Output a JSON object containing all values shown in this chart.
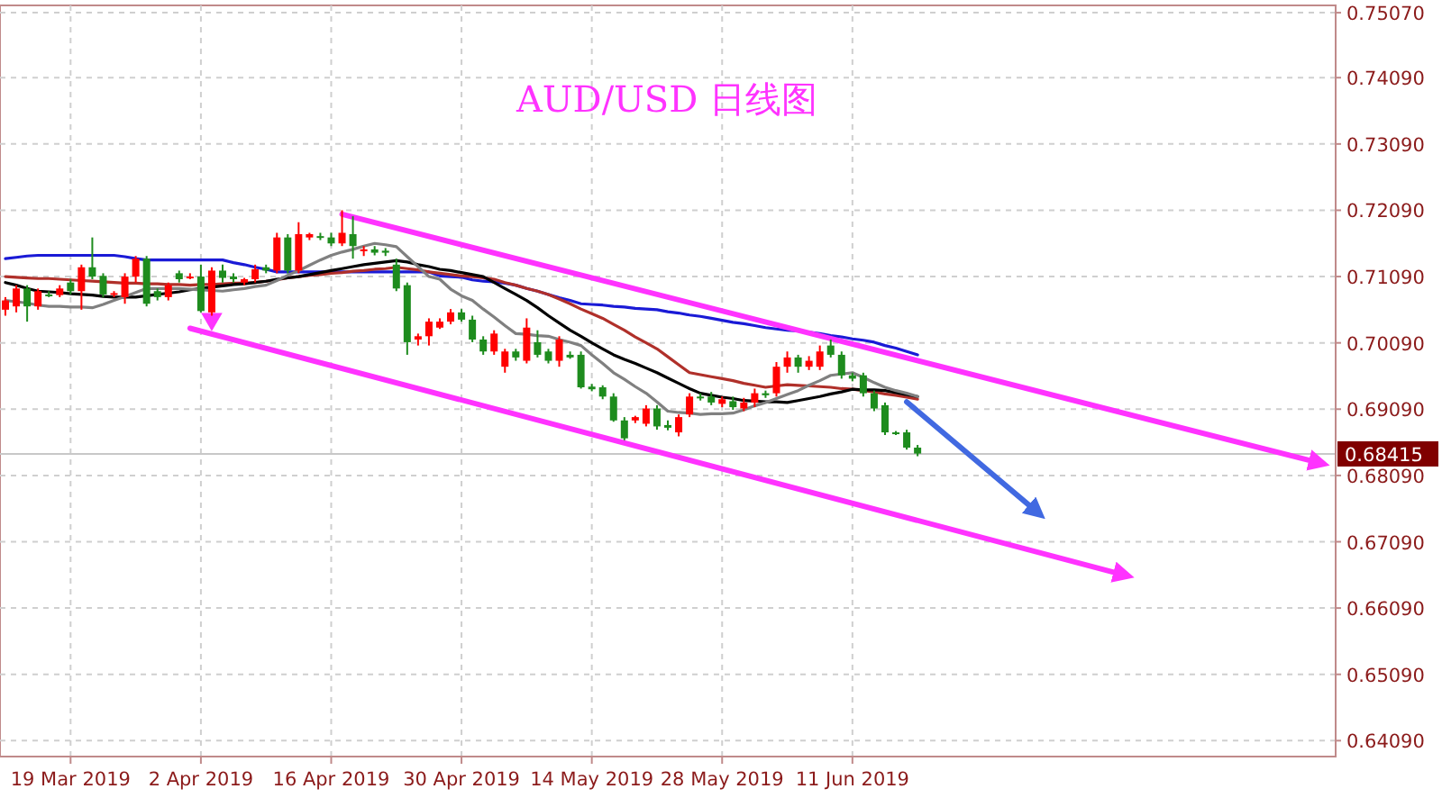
{
  "chart_data": {
    "type": "candlestick",
    "title": "AUD/USD 日线图",
    "categories": [
      null,
      null,
      null,
      null,
      null,
      null,
      "19 Mar 2019",
      null,
      null,
      null,
      null,
      null,
      null,
      null,
      null,
      null,
      null,
      null,
      "2 Apr 2019",
      null,
      null,
      null,
      null,
      null,
      null,
      null,
      null,
      null,
      null,
      null,
      "16 Apr 2019",
      null,
      null,
      null,
      null,
      null,
      null,
      null,
      null,
      null,
      null,
      null,
      "30 Apr 2019",
      null,
      null,
      null,
      null,
      null,
      null,
      null,
      null,
      null,
      null,
      null,
      "14 May 2019",
      null,
      null,
      null,
      null,
      null,
      null,
      null,
      null,
      null,
      null,
      null,
      "28 May 2019",
      null,
      null,
      null,
      null,
      null,
      null,
      null,
      null,
      null,
      null,
      null,
      "11 Jun 2019",
      null,
      null,
      null,
      null,
      null,
      null,
      null,
      null,
      null,
      null,
      null,
      null,
      null,
      null,
      null,
      null,
      null,
      null,
      null,
      null,
      null,
      null,
      null,
      null,
      null,
      null,
      null,
      null,
      null,
      null,
      null,
      null,
      null,
      null,
      null,
      null,
      null,
      null,
      null,
      null,
      null,
      null,
      null,
      null
    ],
    "ohlc": [
      [
        0.7059,
        0.7078,
        0.705,
        0.7073
      ],
      [
        0.7064,
        0.7096,
        0.7055,
        0.7091
      ],
      [
        0.7091,
        0.7096,
        0.7041,
        0.7064
      ],
      [
        0.7064,
        0.7091,
        0.7059,
        0.7087
      ],
      [
        0.7082,
        0.7087,
        0.7078,
        0.708
      ],
      [
        0.7081,
        0.7096,
        0.7078,
        0.7091
      ],
      [
        0.71,
        0.7105,
        0.7082,
        0.7087
      ],
      [
        0.7087,
        0.7127,
        0.7059,
        0.7123
      ],
      [
        0.7123,
        0.7168,
        0.7105,
        0.7109
      ],
      [
        0.711,
        0.7114,
        0.7078,
        0.7082
      ],
      [
        0.7082,
        0.7087,
        0.7078,
        0.7084
      ],
      [
        0.7078,
        0.7114,
        0.7068,
        0.7109
      ],
      [
        0.7109,
        0.714,
        0.71,
        0.7136
      ],
      [
        0.7136,
        0.714,
        0.7064,
        0.7068
      ],
      [
        0.7087,
        0.7091,
        0.7073,
        0.7078
      ],
      [
        0.7078,
        0.71,
        0.7073,
        0.7096
      ],
      [
        0.7114,
        0.7118,
        0.71,
        0.7105
      ],
      [
        0.7107,
        0.7114,
        0.7105,
        0.7109
      ],
      [
        0.7109,
        0.7127,
        0.7055,
        0.7057
      ],
      [
        0.7055,
        0.7123,
        0.705,
        0.7118
      ],
      [
        0.7118,
        0.7127,
        0.71,
        0.7107
      ],
      [
        0.7109,
        0.7114,
        0.71,
        0.7105
      ],
      [
        0.71,
        0.7107,
        0.7096,
        0.7105
      ],
      [
        0.7105,
        0.7127,
        0.71,
        0.712
      ],
      [
        0.7123,
        0.7127,
        0.7114,
        0.7118
      ],
      [
        0.7118,
        0.7175,
        0.7114,
        0.7168
      ],
      [
        0.7168,
        0.7173,
        0.7114,
        0.7118
      ],
      [
        0.7118,
        0.7191,
        0.7114,
        0.7173
      ],
      [
        0.7168,
        0.7175,
        0.7164,
        0.7173
      ],
      [
        0.717,
        0.7175,
        0.7164,
        0.7168
      ],
      [
        0.7168,
        0.7175,
        0.7155,
        0.7159
      ],
      [
        0.7159,
        0.7209,
        0.7155,
        0.7175
      ],
      [
        0.7173,
        0.72,
        0.7136,
        0.7155
      ],
      [
        0.7148,
        0.7155,
        0.714,
        0.715
      ],
      [
        0.715,
        0.7155,
        0.7141,
        0.7145
      ],
      [
        0.7148,
        0.7152,
        0.714,
        0.7145
      ],
      [
        0.7127,
        0.7136,
        0.7087,
        0.7091
      ],
      [
        0.7096,
        0.71,
        0.6991,
        0.701
      ],
      [
        0.7014,
        0.7023,
        0.7005,
        0.7019
      ],
      [
        0.7019,
        0.7046,
        0.7005,
        0.7041
      ],
      [
        0.7032,
        0.7046,
        0.703,
        0.7041
      ],
      [
        0.7041,
        0.706,
        0.7037,
        0.7055
      ],
      [
        0.7055,
        0.706,
        0.7041,
        0.7044
      ],
      [
        0.7044,
        0.705,
        0.701,
        0.7014
      ],
      [
        0.7014,
        0.7019,
        0.6991,
        0.6996
      ],
      [
        0.6996,
        0.7028,
        0.6991,
        0.7023
      ],
      [
        0.6973,
        0.7,
        0.6964,
        0.6996
      ],
      [
        0.6996,
        0.7,
        0.6982,
        0.6987
      ],
      [
        0.6982,
        0.7046,
        0.6978,
        0.7032
      ],
      [
        0.701,
        0.7028,
        0.6987,
        0.6991
      ],
      [
        0.6996,
        0.7,
        0.6978,
        0.6982
      ],
      [
        0.6982,
        0.7019,
        0.6973,
        0.7014
      ],
      [
        0.6991,
        0.6996,
        0.6985,
        0.6987
      ],
      [
        0.6991,
        0.6996,
        0.694,
        0.6942
      ],
      [
        0.6943,
        0.6947,
        0.6936,
        0.6939
      ],
      [
        0.6942,
        0.6945,
        0.6924,
        0.6928
      ],
      [
        0.6928,
        0.6933,
        0.689,
        0.6892
      ],
      [
        0.6892,
        0.6897,
        0.6862,
        0.6865
      ],
      [
        0.6892,
        0.6899,
        0.6888,
        0.6897
      ],
      [
        0.6887,
        0.6915,
        0.6883,
        0.691
      ],
      [
        0.691,
        0.6915,
        0.6878,
        0.6883
      ],
      [
        0.6885,
        0.6892,
        0.6877,
        0.6881
      ],
      [
        0.6874,
        0.6901,
        0.6868,
        0.6897
      ],
      [
        0.6901,
        0.6933,
        0.6897,
        0.6928
      ],
      [
        0.6928,
        0.6933,
        0.6922,
        0.6926
      ],
      [
        0.6928,
        0.6935,
        0.6915,
        0.6919
      ],
      [
        0.6917,
        0.6928,
        0.6912,
        0.6924
      ],
      [
        0.6921,
        0.6928,
        0.6908,
        0.6912
      ],
      [
        0.691,
        0.6926,
        0.6906,
        0.6919
      ],
      [
        0.6919,
        0.694,
        0.6912,
        0.6933
      ],
      [
        0.6933,
        0.6937,
        0.6926,
        0.693
      ],
      [
        0.6933,
        0.698,
        0.6928,
        0.6973
      ],
      [
        0.6973,
        0.6996,
        0.6964,
        0.6987
      ],
      [
        0.6987,
        0.6991,
        0.6964,
        0.6973
      ],
      [
        0.6973,
        0.6989,
        0.6968,
        0.6982
      ],
      [
        0.6973,
        0.7005,
        0.6968,
        0.6996
      ],
      [
        0.7005,
        0.7014,
        0.6987,
        0.6991
      ],
      [
        0.6991,
        0.6996,
        0.6955,
        0.696
      ],
      [
        0.696,
        0.6964,
        0.6951,
        0.6955
      ],
      [
        0.696,
        0.6964,
        0.6928,
        0.6933
      ],
      [
        0.6933,
        0.6937,
        0.6906,
        0.691
      ],
      [
        0.6915,
        0.6919,
        0.687,
        0.6874
      ],
      [
        0.6874,
        0.6876,
        0.687,
        0.6872
      ],
      [
        0.6874,
        0.6878,
        0.6848,
        0.6851
      ],
      [
        0.6851,
        0.6855,
        0.6838,
        0.6842
      ],
      null,
      null,
      null,
      null,
      null,
      null,
      null,
      null,
      null,
      null,
      null,
      null,
      null,
      null,
      null,
      null,
      null,
      null,
      null,
      null,
      null,
      null,
      null,
      null,
      null,
      null,
      null,
      null,
      null,
      null,
      null,
      null,
      null,
      null,
      null,
      null,
      null,
      null
    ],
    "series": [
      {
        "type": "line",
        "color": "#1a1ad6",
        "values": [
          0.7136,
          0.7138,
          0.714,
          0.7141,
          0.7141,
          0.7141,
          0.7141,
          0.7141,
          0.7141,
          0.7141,
          0.7141,
          0.7139,
          0.7136,
          0.7134,
          0.7134,
          0.7134,
          0.7134,
          0.7134,
          0.7134,
          0.7134,
          0.7134,
          0.713,
          0.7127,
          0.7123,
          0.712,
          0.7116,
          0.7116,
          0.7116,
          0.7116,
          0.7116,
          0.7116,
          0.7116,
          0.7116,
          0.7116,
          0.7116,
          0.7116,
          0.7116,
          0.7116,
          0.7116,
          0.7116,
          0.711,
          0.7109,
          0.7108,
          0.7104,
          0.7102,
          0.7101,
          0.7099,
          0.7096,
          0.7091,
          0.7087,
          0.7082,
          0.7077,
          0.7073,
          0.7068,
          0.7067,
          0.7066,
          0.7064,
          0.7063,
          0.7061,
          0.706,
          0.7059,
          0.7056,
          0.7054,
          0.7051,
          0.7049,
          0.7046,
          0.7043,
          0.704,
          0.7038,
          0.7035,
          0.7032,
          0.703,
          0.7028,
          0.7027,
          0.7025,
          0.7023,
          0.702,
          0.7018,
          0.7015,
          0.7013,
          0.701,
          0.7005,
          0.7001,
          0.6996,
          0.6991,
          null,
          null,
          null,
          null,
          null,
          null,
          null,
          null,
          null,
          null,
          null,
          null,
          null,
          null,
          null,
          null,
          null,
          null,
          null,
          null,
          null,
          null,
          null,
          null,
          null,
          null,
          null,
          null,
          null,
          null,
          null,
          null,
          null,
          null,
          null,
          null,
          null,
          null
        ]
      },
      {
        "type": "line",
        "color": "#b0302a",
        "values": [
          0.7109,
          0.7108,
          0.7107,
          0.7106,
          0.7106,
          0.7105,
          0.7104,
          0.7103,
          0.7102,
          0.7101,
          0.71,
          0.7099,
          0.7099,
          0.7098,
          0.7098,
          0.7097,
          0.7097,
          0.7096,
          0.7097,
          0.7097,
          0.7098,
          0.7099,
          0.7099,
          0.71,
          0.7102,
          0.7104,
          0.7107,
          0.7109,
          0.7111,
          0.7112,
          0.7114,
          0.7115,
          0.7117,
          0.7118,
          0.712,
          0.7121,
          0.7123,
          0.7121,
          0.7119,
          0.7116,
          0.7114,
          0.7112,
          0.711,
          0.7109,
          0.7107,
          0.7105,
          0.71,
          0.7096,
          0.7091,
          0.7087,
          0.7082,
          0.7075,
          0.7068,
          0.706,
          0.7053,
          0.7046,
          0.7037,
          0.7028,
          0.7018,
          0.7009,
          0.7,
          0.6988,
          0.6976,
          0.6964,
          0.6961,
          0.6958,
          0.6955,
          0.6952,
          0.6948,
          0.6945,
          0.6942,
          0.6944,
          0.6946,
          0.6945,
          0.6944,
          0.6943,
          0.6942,
          0.694,
          0.6939,
          0.6937,
          0.6935,
          0.6932,
          0.693,
          0.6927,
          0.6924,
          null,
          null,
          null,
          null,
          null,
          null,
          null,
          null,
          null,
          null,
          null,
          null,
          null,
          null,
          null,
          null,
          null,
          null,
          null,
          null,
          null,
          null,
          null,
          null,
          null,
          null,
          null,
          null,
          null,
          null,
          null,
          null,
          null,
          null,
          null,
          null,
          null,
          null
        ]
      },
      {
        "type": "line",
        "color": "#000000",
        "values": [
          0.71,
          0.7096,
          0.7091,
          0.7087,
          0.7086,
          0.7085,
          0.7083,
          0.7082,
          0.7081,
          0.7079,
          0.7078,
          0.7078,
          0.7078,
          0.708,
          0.7082,
          0.7084,
          0.7086,
          0.7089,
          0.7091,
          0.7093,
          0.7095,
          0.7097,
          0.7098,
          0.71,
          0.7102,
          0.7105,
          0.7107,
          0.7109,
          0.7112,
          0.7115,
          0.7118,
          0.7121,
          0.7124,
          0.7127,
          0.7129,
          0.7131,
          0.7133,
          0.7131,
          0.7127,
          0.7124,
          0.712,
          0.7118,
          0.7115,
          0.7112,
          0.7109,
          0.71,
          0.7091,
          0.7082,
          0.7073,
          0.7062,
          0.705,
          0.7039,
          0.7028,
          0.7019,
          0.7009,
          0.7,
          0.6991,
          0.6984,
          0.6978,
          0.6971,
          0.6964,
          0.6956,
          0.6948,
          0.694,
          0.6933,
          0.693,
          0.6927,
          0.6925,
          0.6922,
          0.6921,
          0.692,
          0.692,
          0.6919,
          0.6922,
          0.6925,
          0.6928,
          0.6932,
          0.6935,
          0.6939,
          0.6938,
          0.6938,
          0.6937,
          0.6934,
          0.6931,
          0.6928,
          null,
          null,
          null,
          null,
          null,
          null,
          null,
          null,
          null,
          null,
          null,
          null,
          null,
          null,
          null,
          null,
          null,
          null,
          null,
          null,
          null,
          null,
          null,
          null,
          null,
          null,
          null,
          null,
          null,
          null,
          null,
          null,
          null,
          null,
          null,
          null,
          null,
          null
        ]
      },
      {
        "type": "line",
        "color": "#808080",
        "values": [
          0.7073,
          0.7071,
          0.7069,
          0.7066,
          0.7064,
          0.7064,
          0.7063,
          0.7063,
          0.7062,
          0.7067,
          0.7073,
          0.7079,
          0.7085,
          0.7091,
          0.7091,
          0.7091,
          0.7091,
          0.709,
          0.7089,
          0.7088,
          0.7087,
          0.7089,
          0.7091,
          0.7094,
          0.7096,
          0.7103,
          0.7111,
          0.7118,
          0.7126,
          0.7134,
          0.7141,
          0.7146,
          0.715,
          0.7155,
          0.7159,
          0.7157,
          0.7154,
          0.7139,
          0.7124,
          0.7109,
          0.7105,
          0.709,
          0.708,
          0.7073,
          0.706,
          0.7048,
          0.7035,
          0.7023,
          0.7022,
          0.702,
          0.7019,
          0.7014,
          0.701,
          0.7005,
          0.6991,
          0.6978,
          0.6964,
          0.6954,
          0.6943,
          0.6933,
          0.692,
          0.6906,
          0.6904,
          0.6903,
          0.6901,
          0.6902,
          0.6902,
          0.6903,
          0.6908,
          0.6914,
          0.6919,
          0.6925,
          0.6931,
          0.6937,
          0.6945,
          0.6952,
          0.696,
          0.6962,
          0.6964,
          0.6957,
          0.6949,
          0.6942,
          0.6937,
          0.6933,
          0.6928,
          null,
          null,
          null,
          null,
          null,
          null,
          null,
          null,
          null,
          null,
          null,
          null,
          null,
          null,
          null,
          null,
          null,
          null,
          null,
          null,
          null,
          null,
          null,
          null,
          null,
          null,
          null,
          null,
          null,
          null,
          null,
          null,
          null,
          null,
          null,
          null,
          null,
          null
        ]
      },
      {
        "type": "line",
        "color": "#ff33ff",
        "values": [
          null,
          null,
          null,
          null,
          null,
          null,
          null,
          null,
          null,
          null,
          null,
          null,
          null,
          null,
          null,
          null,
          null,
          null,
          null,
          null,
          null,
          null,
          null,
          null,
          null,
          null,
          null,
          null,
          null,
          null,
          null,
          0.7203,
          null,
          null,
          null,
          null,
          null,
          null,
          null,
          null,
          null,
          null,
          null,
          null,
          null,
          null,
          null,
          null,
          null,
          null,
          null,
          null,
          null,
          null,
          null,
          null,
          null,
          null,
          null,
          null,
          null,
          null,
          null,
          null,
          null,
          null,
          null,
          null,
          null,
          null,
          null,
          null,
          null,
          null,
          null,
          null,
          null,
          null,
          null,
          null,
          null,
          null,
          null,
          null,
          null,
          null,
          null,
          null,
          null,
          null,
          null,
          null,
          null,
          null,
          null,
          null,
          null,
          null,
          null,
          null,
          null,
          null,
          null,
          null,
          null,
          null,
          null,
          null,
          null,
          null,
          null,
          null,
          null,
          null,
          null,
          null,
          null,
          null,
          null,
          null,
          null,
          0.6828,
          null
        ]
      },
      {
        "type": "line",
        "color": "#ff33ff",
        "values": [
          null,
          null,
          null,
          null,
          null,
          null,
          null,
          null,
          null,
          null,
          null,
          null,
          null,
          null,
          null,
          null,
          null,
          0.7031,
          null,
          null,
          null,
          null,
          null,
          null,
          null,
          null,
          null,
          null,
          null,
          null,
          null,
          null,
          null,
          null,
          null,
          null,
          null,
          null,
          null,
          null,
          null,
          null,
          null,
          null,
          null,
          null,
          null,
          null,
          null,
          null,
          null,
          null,
          null,
          null,
          null,
          null,
          null,
          null,
          null,
          null,
          null,
          null,
          null,
          null,
          null,
          null,
          null,
          null,
          null,
          null,
          null,
          null,
          null,
          null,
          null,
          null,
          null,
          null,
          null,
          null,
          null,
          null,
          null,
          null,
          null,
          null,
          null,
          null,
          null,
          null,
          null,
          null,
          null,
          null,
          null,
          null,
          null,
          null,
          null,
          null,
          null,
          null,
          null,
          0.6659,
          null,
          null,
          null,
          null,
          null,
          null,
          null,
          null,
          null,
          null,
          null,
          null,
          null,
          null,
          null,
          null,
          null,
          null,
          null
        ]
      },
      {
        "type": "line",
        "color": "#4169e1",
        "values": [
          null,
          null,
          null,
          null,
          null,
          null,
          null,
          null,
          null,
          null,
          null,
          null,
          null,
          null,
          null,
          null,
          null,
          null,
          null,
          null,
          null,
          null,
          null,
          null,
          null,
          null,
          null,
          null,
          null,
          null,
          null,
          null,
          null,
          null,
          null,
          null,
          null,
          null,
          null,
          null,
          null,
          null,
          null,
          null,
          null,
          null,
          null,
          null,
          null,
          null,
          null,
          null,
          null,
          null,
          null,
          null,
          null,
          null,
          null,
          null,
          null,
          null,
          null,
          null,
          null,
          null,
          null,
          null,
          null,
          null,
          null,
          null,
          null,
          null,
          null,
          null,
          null,
          null,
          null,
          null,
          null,
          null,
          null,
          0.692,
          null,
          null,
          null,
          null,
          null,
          null,
          null,
          null,
          null,
          null,
          null,
          0.6754,
          null,
          null,
          null,
          null,
          null,
          null,
          null,
          null,
          null,
          null,
          null,
          null,
          null,
          null,
          null,
          null,
          null,
          null,
          null,
          null,
          null,
          null,
          null,
          null,
          null,
          null,
          null
        ]
      },
      {
        "type": "scatter",
        "marker": "triangle",
        "color": "#ff33ff",
        "values": [
          null,
          null,
          null,
          null,
          null,
          null,
          null,
          null,
          null,
          null,
          null,
          null,
          null,
          null,
          null,
          null,
          null,
          null,
          null,
          0.7045,
          null,
          null,
          null,
          null,
          null,
          null,
          null,
          null,
          null,
          null,
          null,
          null,
          null,
          null,
          null,
          null,
          null,
          null,
          null,
          null,
          null,
          null,
          null,
          null,
          null,
          null,
          null,
          null,
          null,
          null,
          null,
          null,
          null,
          null,
          null,
          null,
          null,
          null,
          null,
          null,
          null,
          null,
          null,
          null,
          null,
          null,
          null,
          null,
          null,
          null,
          null,
          null,
          null,
          null,
          null,
          null,
          null,
          null,
          null,
          null,
          null,
          null,
          null,
          null,
          null,
          null,
          null,
          null,
          null,
          null,
          null,
          null,
          null,
          null,
          null,
          null,
          null,
          null,
          null,
          null,
          null,
          null,
          null,
          null,
          null,
          null,
          null,
          null,
          null,
          null,
          null,
          null,
          null,
          null,
          null,
          null,
          null,
          null,
          null,
          null,
          null,
          null,
          null
        ]
      }
    ],
    "ylim": [
      0.6385,
      0.7518
    ],
    "yticks": [
      {
        "value": 0.7507,
        "label": "0.75070"
      },
      {
        "value": 0.7409,
        "label": "0.74090"
      },
      {
        "value": 0.7309,
        "label": "0.73090"
      },
      {
        "value": 0.7209,
        "label": "0.72090"
      },
      {
        "value": 0.7109,
        "label": "0.71090"
      },
      {
        "value": 0.7009,
        "label": "0.70090"
      },
      {
        "value": 0.6909,
        "label": "0.69090"
      },
      {
        "value": 0.6809,
        "label": "0.68090"
      },
      {
        "value": 0.6709,
        "label": "0.67090"
      },
      {
        "value": 0.6609,
        "label": "0.66090"
      },
      {
        "value": 0.6509,
        "label": "0.65090"
      },
      {
        "value": 0.6409,
        "label": "0.64090"
      }
    ],
    "ref_lines": [
      {
        "axis": "y",
        "value": 0.68415,
        "label": "0.68415",
        "color": "#c8c8c8"
      }
    ],
    "grid": true
  }
}
